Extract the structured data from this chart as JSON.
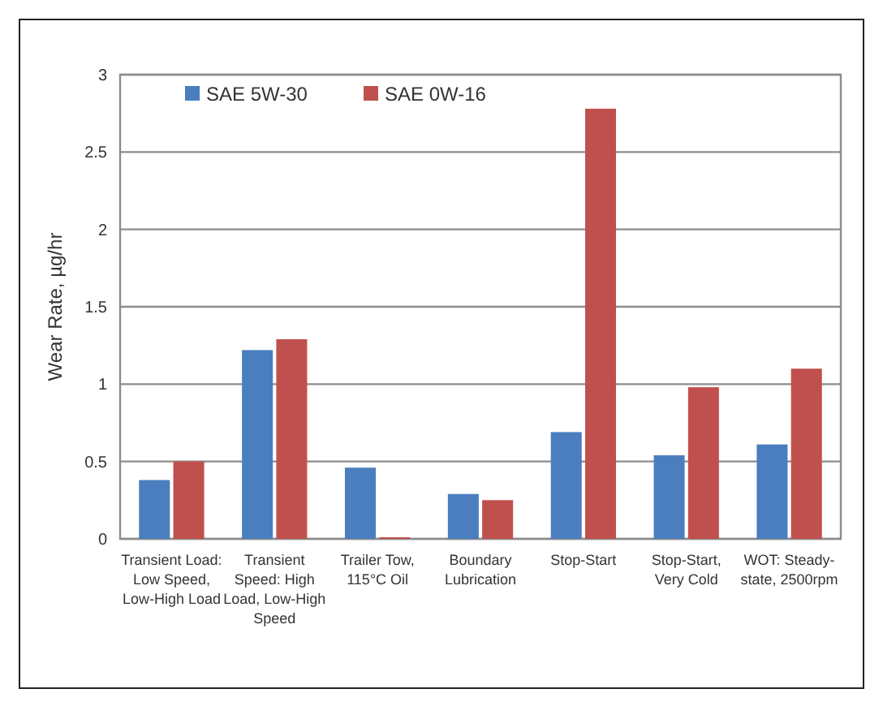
{
  "chart_data": {
    "type": "bar",
    "ylabel": "Wear Rate, µg/hr",
    "categories": [
      "Transient Load: Low Speed, Low-High Load",
      "Transient Speed: High Load, Low-High Speed",
      "Trailer Tow, 115°C Oil",
      "Boundary Lubrication",
      "Stop-Start",
      "Stop-Start, Very Cold",
      "WOT: Steady-state, 2500rpm"
    ],
    "series": [
      {
        "name": "SAE 5W-30",
        "color": "#4a7ebf",
        "values": [
          0.38,
          1.22,
          0.46,
          0.29,
          0.69,
          0.54,
          0.61
        ]
      },
      {
        "name": "SAE 0W-16",
        "color": "#c0504d",
        "values": [
          0.5,
          1.29,
          0.01,
          0.25,
          2.78,
          0.98,
          1.1
        ]
      }
    ],
    "ylim": [
      0,
      3
    ],
    "yticks": [
      0,
      0.5,
      1,
      1.5,
      2,
      2.5,
      3
    ],
    "grid": "y",
    "legend": "top left"
  }
}
